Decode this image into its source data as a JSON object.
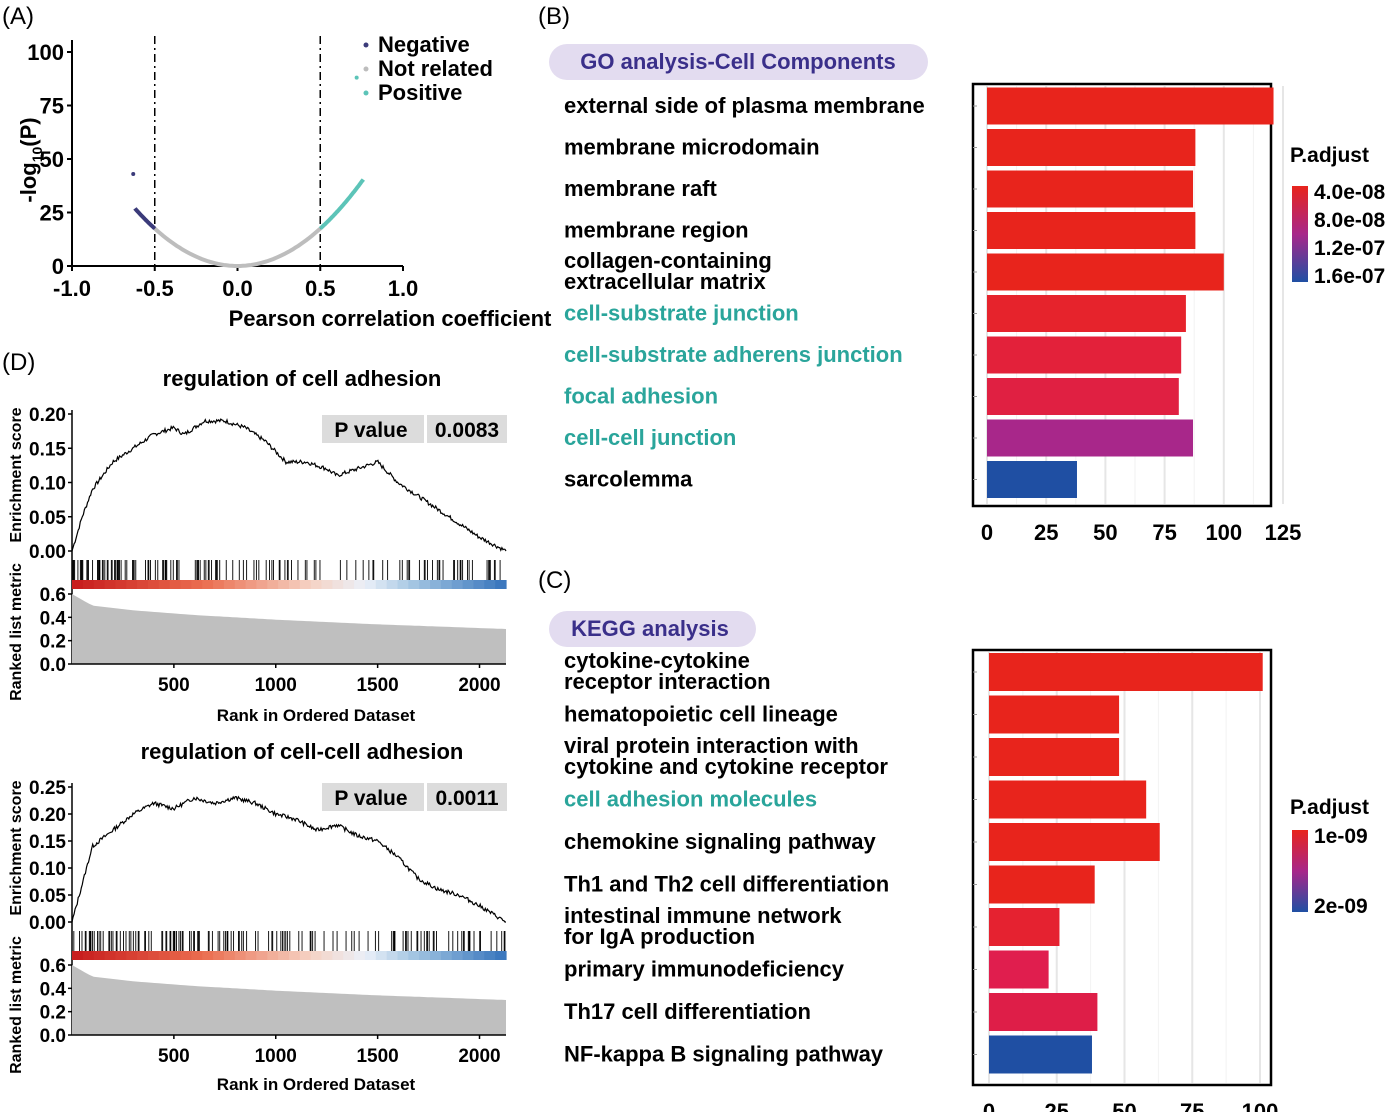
{
  "panel_labels": {
    "a": "(A)",
    "b": "(B)",
    "c": "(C)",
    "d": "(D)"
  },
  "colors": {
    "negative": "#3b3b7a",
    "not_related": "#bdbdbd",
    "positive": "#5cc4b8",
    "padj_high": "#e8241c",
    "padj_mid": "#a8278a",
    "padj_low": "#1f4fa3",
    "highlight_text": "#2aa59b",
    "pill": "#e3dcf0",
    "pill_text": "#3a2f8a",
    "pval_bg": "#dcdcdc",
    "area": "#bfbfbf"
  },
  "chart_data": [
    {
      "id": "A",
      "type": "scatter",
      "title": "",
      "xlabel": "Pearson correlation coefficient",
      "ylabel_main": "-log",
      "ylabel_sub": "10",
      "ylabel_tail": "(P)",
      "xlim": [
        -1.0,
        1.0
      ],
      "ylim": [
        0,
        100
      ],
      "xticks": [
        "-1.0",
        "-0.5",
        "0.0",
        "0.5",
        "1.0"
      ],
      "xtick_values": [
        -1.0,
        -0.5,
        0.0,
        0.5,
        1.0
      ],
      "yticks": [
        "0",
        "25",
        "50",
        "75",
        "100"
      ],
      "ytick_values": [
        0,
        25,
        50,
        75,
        100
      ],
      "vlines": [
        -0.5,
        0.5
      ],
      "legend": [
        "Negative",
        "Not related",
        "Positive"
      ],
      "curve": {
        "a": 70,
        "negative_range": [
          -0.62,
          -0.5
        ],
        "not_related_range": [
          -0.5,
          0.5
        ],
        "positive_range": [
          0.5,
          0.76
        ]
      },
      "outliers": [
        {
          "x": -0.63,
          "y": 43,
          "group": "Negative"
        },
        {
          "x": 0.72,
          "y": 88,
          "group": "Positive"
        }
      ]
    },
    {
      "id": "B",
      "type": "bar",
      "title": "GO analysis-Cell Components",
      "legend_title": "P.adjust",
      "legend_labels": [
        "4.0e-08",
        "8.0e-08",
        "1.2e-07",
        "1.6e-07"
      ],
      "xlim": [
        0,
        125
      ],
      "xticks": [
        "0",
        "25",
        "50",
        "75",
        "100",
        "125"
      ],
      "xtick_values": [
        0,
        25,
        50,
        75,
        100,
        125
      ],
      "bars": [
        {
          "lines": [
            "external side of plasma membrane"
          ],
          "value": 121,
          "color": "#e8241c",
          "highlight": false
        },
        {
          "lines": [
            "membrane microdomain"
          ],
          "value": 88,
          "color": "#e8241c",
          "highlight": false
        },
        {
          "lines": [
            "membrane raft"
          ],
          "value": 87,
          "color": "#e8241c",
          "highlight": false
        },
        {
          "lines": [
            "membrane region"
          ],
          "value": 88,
          "color": "#e8241c",
          "highlight": false
        },
        {
          "lines": [
            "collagen-containing",
            "extracellular matrix"
          ],
          "value": 100,
          "color": "#e8241c",
          "highlight": false
        },
        {
          "lines": [
            "cell-substrate junction"
          ],
          "value": 84,
          "color": "#e6232c",
          "highlight": true
        },
        {
          "lines": [
            "cell-substrate adherens junction"
          ],
          "value": 82,
          "color": "#e3213a",
          "highlight": true
        },
        {
          "lines": [
            "focal adhesion"
          ],
          "value": 81,
          "color": "#e02042",
          "highlight": true
        },
        {
          "lines": [
            "cell-cell junction"
          ],
          "value": 87,
          "color": "#a8278a",
          "highlight": true
        },
        {
          "lines": [
            "sarcolemma"
          ],
          "value": 38,
          "color": "#1f4fa3",
          "highlight": false
        }
      ]
    },
    {
      "id": "C",
      "type": "bar",
      "title": "KEGG analysis",
      "legend_title": "P.adjust",
      "legend_labels": [
        "1e-09",
        "2e-09"
      ],
      "xlim": [
        0,
        100
      ],
      "xticks": [
        "0",
        "25",
        "50",
        "75",
        "100"
      ],
      "xtick_values": [
        0,
        25,
        50,
        75,
        100
      ],
      "bars": [
        {
          "lines": [
            "cytokine-cytokine",
            "receptor interaction"
          ],
          "value": 101,
          "color": "#e8241c",
          "highlight": false
        },
        {
          "lines": [
            "hematopoietic cell lineage"
          ],
          "value": 48,
          "color": "#e8241c",
          "highlight": false
        },
        {
          "lines": [
            "viral protein interaction with",
            "cytokine and cytokine receptor"
          ],
          "value": 48,
          "color": "#e8241c",
          "highlight": false
        },
        {
          "lines": [
            "cell adhesion molecules"
          ],
          "value": 58,
          "color": "#e8241c",
          "highlight": true
        },
        {
          "lines": [
            "chemokine signaling pathway"
          ],
          "value": 63,
          "color": "#e8241c",
          "highlight": false
        },
        {
          "lines": [
            "Th1 and Th2 cell differentiation"
          ],
          "value": 39,
          "color": "#e8241c",
          "highlight": false
        },
        {
          "lines": [
            "intestinal immune network",
            "for IgA production"
          ],
          "value": 26,
          "color": "#e52230",
          "highlight": false
        },
        {
          "lines": [
            "primary immunodeficiency"
          ],
          "value": 22,
          "color": "#e01e4e",
          "highlight": false
        },
        {
          "lines": [
            "Th17 cell differentiation"
          ],
          "value": 40,
          "color": "#de1e48",
          "highlight": false
        },
        {
          "lines": [
            "NF-kappa B signaling pathway"
          ],
          "value": 38,
          "color": "#1f4fa3",
          "highlight": false
        }
      ]
    },
    {
      "id": "D1",
      "type": "line",
      "title": "regulation of cell adhesion",
      "pvalue_label": "P value",
      "pvalue": "0.0083",
      "ylabel_es": "Enrichment score",
      "ylabel_rank": "Ranked list metric",
      "xlabel": "Rank in Ordered Dataset",
      "xlim": [
        0,
        2130
      ],
      "es_ylim": [
        0,
        0.2
      ],
      "es_yticks": [
        "0.00",
        "0.05",
        "0.10",
        "0.15",
        "0.20"
      ],
      "es_ytick_values": [
        0,
        0.05,
        0.1,
        0.15,
        0.2
      ],
      "rank_ylim": [
        0,
        0.6
      ],
      "rank_yticks": [
        "0.0",
        "0.2",
        "0.4",
        "0.6"
      ],
      "rank_ytick_values": [
        0,
        0.2,
        0.4,
        0.6
      ],
      "xticks": [
        "500",
        "1000",
        "1500",
        "2000"
      ],
      "xtick_values": [
        500,
        1000,
        1500,
        2000
      ],
      "es_curve": [
        [
          0,
          0.0
        ],
        [
          50,
          0.05
        ],
        [
          100,
          0.09
        ],
        [
          200,
          0.13
        ],
        [
          300,
          0.15
        ],
        [
          400,
          0.17
        ],
        [
          500,
          0.18
        ],
        [
          550,
          0.17
        ],
        [
          650,
          0.19
        ],
        [
          750,
          0.19
        ],
        [
          850,
          0.18
        ],
        [
          950,
          0.16
        ],
        [
          1050,
          0.13
        ],
        [
          1150,
          0.13
        ],
        [
          1250,
          0.12
        ],
        [
          1300,
          0.11
        ],
        [
          1400,
          0.12
        ],
        [
          1500,
          0.13
        ],
        [
          1600,
          0.1
        ],
        [
          1700,
          0.08
        ],
        [
          1800,
          0.06
        ],
        [
          1900,
          0.04
        ],
        [
          2000,
          0.02
        ],
        [
          2130,
          0.0
        ]
      ],
      "rank_metric": [
        [
          0,
          0.6
        ],
        [
          100,
          0.5
        ],
        [
          300,
          0.46
        ],
        [
          600,
          0.42
        ],
        [
          1000,
          0.38
        ],
        [
          1500,
          0.34
        ],
        [
          2130,
          0.3
        ]
      ],
      "hits_seed": 7
    },
    {
      "id": "D2",
      "type": "line",
      "title": "regulation of cell-cell adhesion",
      "pvalue_label": "P value",
      "pvalue": "0.0011",
      "ylabel_es": "Enrichment score",
      "ylabel_rank": "Ranked list metric",
      "xlabel": "Rank in Ordered Dataset",
      "xlim": [
        0,
        2130
      ],
      "es_ylim": [
        0,
        0.25
      ],
      "es_yticks": [
        "0.00",
        "0.05",
        "0.10",
        "0.15",
        "0.20",
        "0.25"
      ],
      "es_ytick_values": [
        0,
        0.05,
        0.1,
        0.15,
        0.2,
        0.25
      ],
      "rank_ylim": [
        0,
        0.6
      ],
      "rank_yticks": [
        "0.0",
        "0.2",
        "0.4",
        "0.6"
      ],
      "rank_ytick_values": [
        0,
        0.2,
        0.4,
        0.6
      ],
      "xticks": [
        "500",
        "1000",
        "1500",
        "2000"
      ],
      "xtick_values": [
        500,
        1000,
        1500,
        2000
      ],
      "es_curve": [
        [
          0,
          0.0
        ],
        [
          50,
          0.07
        ],
        [
          100,
          0.14
        ],
        [
          200,
          0.17
        ],
        [
          300,
          0.2
        ],
        [
          400,
          0.22
        ],
        [
          500,
          0.21
        ],
        [
          600,
          0.23
        ],
        [
          700,
          0.22
        ],
        [
          800,
          0.23
        ],
        [
          900,
          0.22
        ],
        [
          1000,
          0.2
        ],
        [
          1100,
          0.19
        ],
        [
          1200,
          0.17
        ],
        [
          1300,
          0.18
        ],
        [
          1400,
          0.16
        ],
        [
          1500,
          0.15
        ],
        [
          1600,
          0.12
        ],
        [
          1700,
          0.08
        ],
        [
          1800,
          0.06
        ],
        [
          1900,
          0.05
        ],
        [
          2000,
          0.03
        ],
        [
          2130,
          0.0
        ]
      ],
      "rank_metric": [
        [
          0,
          0.6
        ],
        [
          100,
          0.5
        ],
        [
          300,
          0.46
        ],
        [
          600,
          0.42
        ],
        [
          1000,
          0.38
        ],
        [
          1500,
          0.34
        ],
        [
          2130,
          0.3
        ]
      ],
      "hits_seed": 13
    }
  ]
}
